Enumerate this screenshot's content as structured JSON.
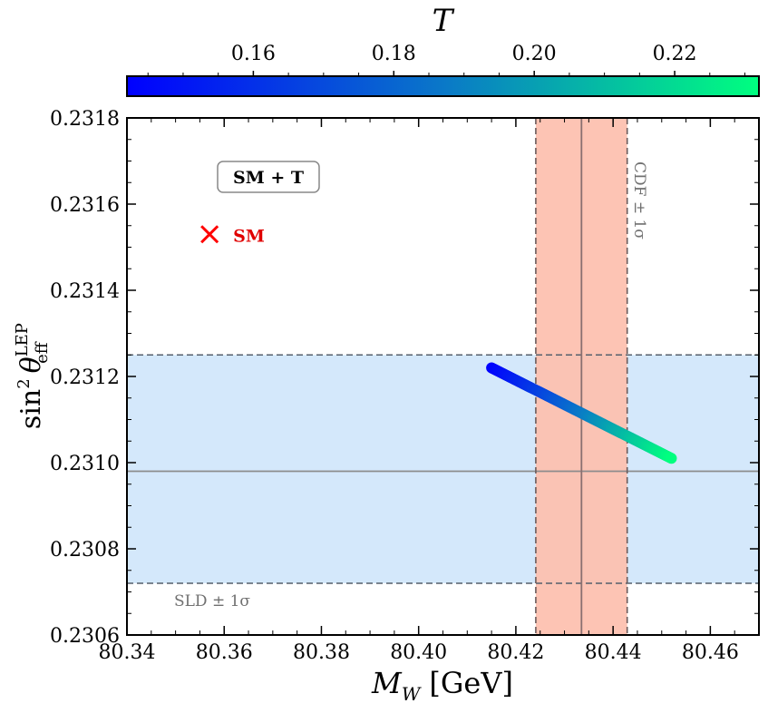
{
  "chart_data": {
    "type": "scatter",
    "xlabel": {
      "main": "M",
      "sub": "W",
      "unit": "[GeV]"
    },
    "ylabel": {
      "main": "sin",
      "sup": "2",
      "theta": "θ",
      "sub": "eff",
      "supLabel": "LEP"
    },
    "xlim": [
      80.34,
      80.47
    ],
    "ylim": [
      0.2306,
      0.2318
    ],
    "xticks": [
      "80.34",
      "80.36",
      "80.38",
      "80.40",
      "80.42",
      "80.44",
      "80.46"
    ],
    "yticks": [
      "0.2306",
      "0.2308",
      "0.2310",
      "0.2312",
      "0.2314",
      "0.2316",
      "0.2318"
    ],
    "colorbar": {
      "label": "T",
      "range": [
        0.142,
        0.232
      ],
      "ticks": [
        "0.16",
        "0.18",
        "0.20",
        "0.22"
      ],
      "colors": [
        "#0000ff",
        "#0a78c8",
        "#00ff7f"
      ]
    },
    "series": [
      {
        "x_start": 80.415,
        "y_start": 0.23122,
        "t_start": 0.142,
        "x_end": 80.452,
        "y_end": 0.23101,
        "t_end": 0.232
      }
    ],
    "bands": {
      "cdf": {
        "label": "CDF ± 1σ",
        "center": 80.4335,
        "low": 80.4241,
        "high": 80.4429,
        "color": "#fdbfae"
      },
      "sld": {
        "label": "SLD ± 1σ",
        "center": 0.23098,
        "low": 0.23072,
        "high": 0.23125,
        "color": "#d4e8fb"
      }
    },
    "sm_point": {
      "x": 80.357,
      "y": 0.23153,
      "label": "SM",
      "color": "#ff0000"
    },
    "legend": {
      "label": "SM + T",
      "position": "top-left"
    }
  }
}
